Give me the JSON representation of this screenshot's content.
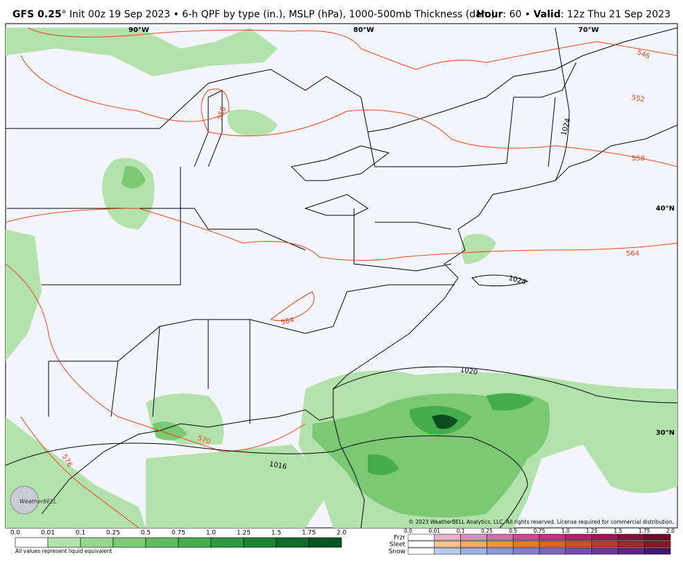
{
  "header": {
    "title_bold": "GFS 0.25",
    "title": "° Init 00z 19 Sep 2023 • 6-h QPF by type (in.), MSLP (hPa), 1000-500mb Thickness (dam)",
    "hour_label": "Hour",
    "hour": ": 60 • ",
    "valid_label": "Valid",
    "valid": ": 12z Thu 21 Sep 2023"
  },
  "map": {
    "grid_labels": [
      "90°W",
      "80°W",
      "70°W",
      "40°N",
      "30°N"
    ],
    "isobar_labels": [
      "1024",
      "1024",
      "1020",
      "1016"
    ],
    "thickness_labels": [
      "546",
      "552",
      "558",
      "564",
      "564",
      "570",
      "576",
      "558"
    ],
    "copyright": "© 2023 WeatherBELL Analytics, LLC. All rights reserved. License required for commercial distribution.",
    "logo": "WeatherBELL"
  },
  "legend": {
    "rain": {
      "ticks": [
        "0.0",
        "0.01",
        "0.1",
        "0.25",
        "0.5",
        "0.75",
        "1.0",
        "1.25",
        "1.5",
        "1.75",
        "2.0"
      ],
      "colors": [
        "#ffffff",
        "#b3e2ad",
        "#97d690",
        "#7bc975",
        "#5fbb5e",
        "#46ac4e",
        "#2f9a42",
        "#1d8437",
        "#106c2d",
        "#085522"
      ],
      "note": "All values represent liquid equivalent"
    },
    "types": {
      "ticks": [
        "0.0",
        "0.01",
        "0.1",
        "0.25",
        "0.5",
        "0.75",
        "1.0",
        "1.25",
        "1.5",
        "1.75",
        "2.0"
      ],
      "rows": [
        {
          "name": "Frzr",
          "colors": [
            "#ffffff",
            "#e6b3c9",
            "#dc8fb7",
            "#d76aa7",
            "#d24895",
            "#c92f7e",
            "#b91f67",
            "#a4154f",
            "#8d0e3c",
            "#760a2d"
          ]
        },
        {
          "name": "Sleet",
          "colors": [
            "#ffffff",
            "#f7c58c",
            "#f4ab65",
            "#f0923f",
            "#ec7a2a",
            "#e4622a",
            "#d94b2a",
            "#c7342c",
            "#a8232a",
            "#8a1823"
          ]
        },
        {
          "name": "Snow",
          "colors": [
            "#ffffff",
            "#b7cce9",
            "#9fb3e0",
            "#8e9ad6",
            "#8380c9",
            "#7c67bb",
            "#744fab",
            "#6a3998",
            "#5b2682",
            "#4a186b"
          ]
        }
      ]
    }
  }
}
